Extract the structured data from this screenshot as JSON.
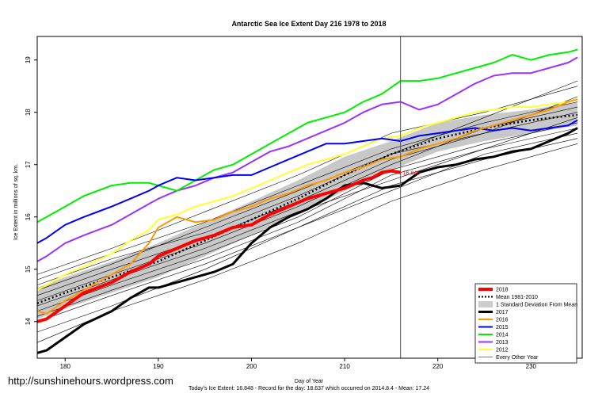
{
  "chart_data": {
    "type": "line",
    "title": "Antarctic Sea Ice Extent Day 216 1978 to 2018",
    "xlabel": "Day of Year",
    "ylabel": "Ice Extent in millions of sq. km.",
    "xlim": [
      177,
      235.5
    ],
    "ylim": [
      13.3,
      19.45
    ],
    "xticks": [
      180,
      190,
      200,
      210,
      220,
      230
    ],
    "yticks": [
      14,
      15,
      16,
      17,
      18,
      19
    ],
    "grid": false,
    "legend_position": "bottom-right",
    "current_day": 216,
    "current_label": "16.848",
    "std_band": {
      "name": "1 Standard Deviation From Mean",
      "x": [
        177,
        180,
        185,
        190,
        195,
        200,
        205,
        210,
        215,
        220,
        225,
        230,
        235
      ],
      "lower": [
        14.05,
        14.25,
        14.55,
        14.85,
        15.25,
        15.65,
        16.05,
        16.5,
        16.9,
        17.25,
        17.45,
        17.6,
        17.75
      ],
      "upper": [
        14.65,
        14.85,
        15.15,
        15.5,
        15.9,
        16.3,
        16.7,
        17.15,
        17.45,
        17.8,
        17.95,
        18.05,
        18.2
      ]
    },
    "mean_series": {
      "name": "Mean 1981-2010",
      "x": [
        177,
        180,
        185,
        190,
        195,
        200,
        205,
        210,
        215,
        220,
        225,
        230,
        235
      ],
      "values": [
        14.35,
        14.55,
        14.85,
        15.15,
        15.55,
        15.95,
        16.35,
        16.8,
        17.2,
        17.5,
        17.7,
        17.85,
        17.95
      ]
    },
    "series": [
      {
        "name": "2018",
        "color": "#ff0000",
        "width": 4,
        "x": [
          177,
          178,
          180,
          182,
          185,
          187,
          189,
          190,
          192,
          194,
          196,
          198,
          200,
          202,
          204,
          206,
          208,
          210,
          212,
          213,
          214,
          215,
          216
        ],
        "values": [
          14.0,
          14.05,
          14.3,
          14.55,
          14.75,
          14.95,
          15.1,
          15.25,
          15.4,
          15.55,
          15.65,
          15.8,
          15.85,
          16.05,
          16.2,
          16.35,
          16.45,
          16.55,
          16.7,
          16.75,
          16.85,
          16.88,
          16.85
        ]
      },
      {
        "name": "2017",
        "color": "#000000",
        "width": 3,
        "x": [
          177,
          178,
          180,
          182,
          185,
          187,
          189,
          190,
          192,
          194,
          196,
          198,
          200,
          202,
          204,
          206,
          208,
          210,
          212,
          214,
          216,
          218,
          220,
          222,
          224,
          226,
          228,
          230,
          232,
          234,
          235
        ],
        "values": [
          13.4,
          13.45,
          13.7,
          13.95,
          14.2,
          14.45,
          14.65,
          14.65,
          14.75,
          14.85,
          14.95,
          15.1,
          15.5,
          15.8,
          16.0,
          16.15,
          16.35,
          16.6,
          16.65,
          16.55,
          16.6,
          16.85,
          16.95,
          17.0,
          17.1,
          17.15,
          17.25,
          17.3,
          17.45,
          17.6,
          17.7
        ]
      },
      {
        "name": "2016",
        "color": "#ff9900",
        "width": 2,
        "x": [
          177,
          178,
          180,
          182,
          185,
          187,
          189,
          190,
          192,
          194,
          196,
          198,
          200,
          202,
          204,
          206,
          208,
          210,
          212,
          214,
          216,
          218,
          220,
          222,
          224,
          226,
          228,
          230,
          232,
          234,
          235
        ],
        "values": [
          14.2,
          14.15,
          14.4,
          14.6,
          14.9,
          15.1,
          15.5,
          15.8,
          16.0,
          15.9,
          15.95,
          16.1,
          16.2,
          16.35,
          16.45,
          16.6,
          16.7,
          16.85,
          16.95,
          17.1,
          17.15,
          17.3,
          17.4,
          17.5,
          17.65,
          17.75,
          17.85,
          17.95,
          18.05,
          18.2,
          18.25
        ]
      },
      {
        "name": "2015",
        "color": "#0000ff",
        "width": 2,
        "x": [
          177,
          178,
          180,
          182,
          185,
          187,
          189,
          190,
          192,
          194,
          196,
          198,
          200,
          202,
          204,
          206,
          208,
          210,
          212,
          214,
          216,
          218,
          220,
          222,
          224,
          226,
          228,
          230,
          232,
          234,
          235
        ],
        "values": [
          15.5,
          15.6,
          15.85,
          16.0,
          16.2,
          16.35,
          16.5,
          16.6,
          16.75,
          16.7,
          16.75,
          16.8,
          16.8,
          16.95,
          17.1,
          17.25,
          17.4,
          17.4,
          17.45,
          17.5,
          17.45,
          17.55,
          17.6,
          17.65,
          17.7,
          17.65,
          17.7,
          17.65,
          17.7,
          17.75,
          17.85
        ]
      },
      {
        "name": "2014",
        "color": "#00ee00",
        "width": 2,
        "x": [
          177,
          178,
          180,
          182,
          185,
          187,
          189,
          190,
          192,
          194,
          196,
          198,
          200,
          202,
          204,
          206,
          208,
          210,
          212,
          214,
          216,
          218,
          220,
          222,
          224,
          226,
          228,
          230,
          232,
          234,
          235
        ],
        "values": [
          15.9,
          16.0,
          16.2,
          16.4,
          16.6,
          16.65,
          16.65,
          16.6,
          16.5,
          16.7,
          16.9,
          17.0,
          17.2,
          17.4,
          17.6,
          17.8,
          17.9,
          18.0,
          18.2,
          18.35,
          18.6,
          18.6,
          18.65,
          18.75,
          18.85,
          18.95,
          19.1,
          19.0,
          19.1,
          19.15,
          19.2
        ]
      },
      {
        "name": "2013",
        "color": "#9933ff",
        "width": 2,
        "x": [
          177,
          178,
          180,
          182,
          185,
          187,
          189,
          190,
          192,
          194,
          196,
          198,
          200,
          202,
          204,
          206,
          208,
          210,
          212,
          214,
          216,
          218,
          220,
          222,
          224,
          226,
          228,
          230,
          232,
          234,
          235
        ],
        "values": [
          15.15,
          15.25,
          15.5,
          15.65,
          15.85,
          16.05,
          16.25,
          16.35,
          16.5,
          16.6,
          16.75,
          16.85,
          17.05,
          17.25,
          17.35,
          17.5,
          17.65,
          17.8,
          18.0,
          18.15,
          18.2,
          18.05,
          18.15,
          18.35,
          18.55,
          18.7,
          18.75,
          18.75,
          18.85,
          18.95,
          19.05
        ]
      },
      {
        "name": "2012",
        "color": "#ffff33",
        "width": 2,
        "x": [
          177,
          178,
          180,
          182,
          185,
          187,
          189,
          190,
          192,
          194,
          196,
          198,
          200,
          202,
          204,
          206,
          208,
          210,
          212,
          214,
          216,
          218,
          220,
          222,
          224,
          226,
          228,
          230,
          232,
          234,
          235
        ],
        "values": [
          14.6,
          14.7,
          14.9,
          15.05,
          15.3,
          15.55,
          15.75,
          15.95,
          16.05,
          16.2,
          16.3,
          16.4,
          16.55,
          16.7,
          16.85,
          17.0,
          17.1,
          17.2,
          17.35,
          17.5,
          17.55,
          17.7,
          17.8,
          17.9,
          18.0,
          18.05,
          18.1,
          18.1,
          18.15,
          18.2,
          18.25
        ]
      }
    ],
    "other_years": [
      {
        "x": [
          177,
          185,
          195,
          205,
          215,
          225,
          235
        ],
        "values": [
          14.5,
          15.0,
          15.6,
          16.3,
          17.1,
          17.6,
          18.0
        ]
      },
      {
        "x": [
          177,
          185,
          195,
          205,
          215,
          225,
          235
        ],
        "values": [
          14.2,
          14.7,
          15.3,
          16.0,
          16.9,
          17.4,
          17.8
        ]
      },
      {
        "x": [
          177,
          185,
          195,
          205,
          215,
          225,
          235
        ],
        "values": [
          14.8,
          15.3,
          15.9,
          16.6,
          17.3,
          17.8,
          18.2
        ]
      },
      {
        "x": [
          177,
          185,
          195,
          205,
          215,
          225,
          235
        ],
        "values": [
          13.8,
          14.3,
          15.0,
          15.8,
          16.6,
          17.1,
          17.5
        ]
      },
      {
        "x": [
          177,
          185,
          195,
          205,
          215,
          225,
          235
        ],
        "values": [
          14.9,
          15.4,
          16.1,
          16.8,
          17.6,
          18.0,
          18.5
        ]
      },
      {
        "x": [
          177,
          185,
          195,
          205,
          215,
          225,
          235
        ],
        "values": [
          13.6,
          14.2,
          14.8,
          15.5,
          16.3,
          16.9,
          17.4
        ]
      },
      {
        "x": [
          177,
          185,
          195,
          205,
          215,
          225,
          235
        ],
        "values": [
          14.4,
          14.9,
          15.5,
          16.2,
          17.0,
          17.7,
          18.1
        ]
      },
      {
        "x": [
          177,
          185,
          195,
          205,
          215,
          225,
          235
        ],
        "values": [
          14.1,
          14.6,
          15.2,
          15.9,
          16.8,
          17.3,
          17.7
        ]
      },
      {
        "x": [
          177,
          185,
          195,
          205,
          215,
          225,
          235
        ],
        "values": [
          14.6,
          15.1,
          15.8,
          16.5,
          17.2,
          17.6,
          18.3
        ]
      },
      {
        "x": [
          177,
          185,
          195,
          205,
          215,
          225,
          235
        ],
        "values": [
          14.0,
          14.5,
          15.1,
          15.8,
          16.5,
          17.2,
          17.6
        ]
      },
      {
        "x": [
          177,
          185,
          195,
          205,
          215,
          225,
          235
        ],
        "values": [
          14.7,
          15.2,
          15.7,
          16.4,
          17.2,
          17.9,
          18.6
        ]
      },
      {
        "x": [
          177,
          185,
          195,
          205,
          215,
          225,
          235
        ],
        "values": [
          14.3,
          14.8,
          15.4,
          16.1,
          16.7,
          17.3,
          17.9
        ]
      }
    ],
    "legend": [
      {
        "label": "2018",
        "kind": "line",
        "color": "#ff0000",
        "width": 4
      },
      {
        "label": "Mean 1981-2010",
        "kind": "dotted",
        "color": "#000000",
        "width": 2
      },
      {
        "label": "1 Standard Deviation From Mean",
        "kind": "band",
        "color": "#cccccc",
        "width": 8
      },
      {
        "label": "2017",
        "kind": "line",
        "color": "#000000",
        "width": 3
      },
      {
        "label": "2016",
        "kind": "line",
        "color": "#ff9900",
        "width": 2
      },
      {
        "label": "2015",
        "kind": "line",
        "color": "#0000ff",
        "width": 2
      },
      {
        "label": "2014",
        "kind": "line",
        "color": "#00ee00",
        "width": 2
      },
      {
        "label": "2013",
        "kind": "line",
        "color": "#9933ff",
        "width": 2
      },
      {
        "label": "2012",
        "kind": "line",
        "color": "#ffff33",
        "width": 2
      },
      {
        "label": "Every Other Year",
        "kind": "line",
        "color": "#000000",
        "width": 0.6
      }
    ],
    "footer": "Today's Ice Extent: 16.848  - Record for the day: 18.637 which occurred on 2014.8.4  - Mean: 17.24"
  },
  "watermark": "http://sunshinehours.wordpress.com"
}
